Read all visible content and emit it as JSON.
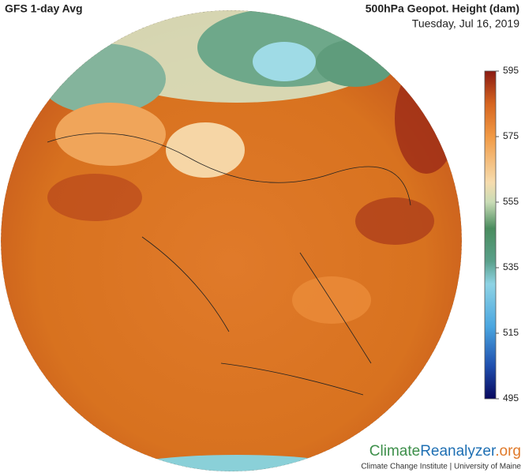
{
  "header": {
    "left_title": "GFS 1-day Avg",
    "right_title": "500hPa Geopot. Height (dam)",
    "date": "Tuesday, Jul 16, 2019"
  },
  "colorbar": {
    "range": [
      495,
      595
    ],
    "ticks": [
      595,
      575,
      555,
      535,
      515,
      495
    ]
  },
  "logo": {
    "parts": [
      "Climate",
      "Reanalyzer",
      ".org"
    ],
    "subtitle": "Climate Change Institute | University of Maine"
  }
}
